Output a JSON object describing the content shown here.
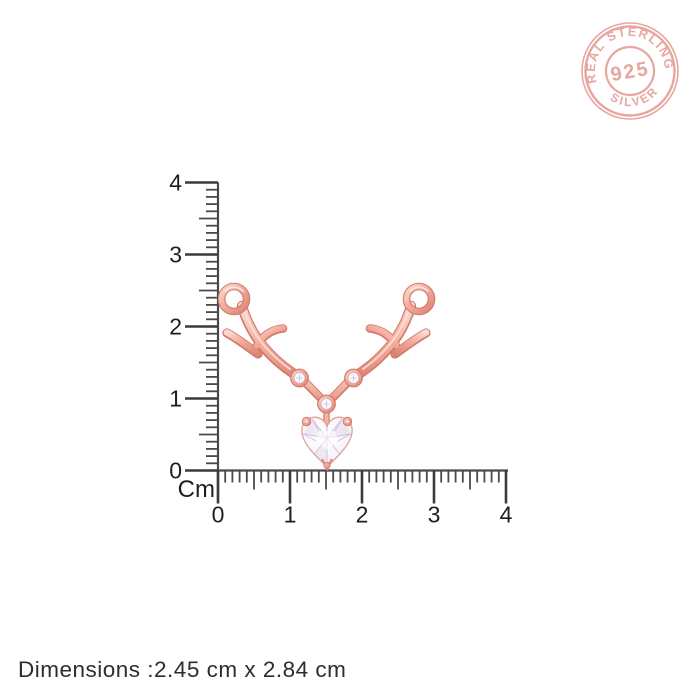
{
  "stamp": {
    "arc_top_text": "REAL STERLING",
    "center_text": "925",
    "arc_bottom_text": "SILVER",
    "color": "#e2948a"
  },
  "ruler": {
    "unit_label": "Cm",
    "vertical_tick_labels": [
      "0",
      "1",
      "2",
      "3",
      "4"
    ],
    "horizontal_tick_labels": [
      "0",
      "1",
      "2",
      "3",
      "4"
    ],
    "line_color": "#4a4a4a",
    "major_tick_color": "#3a3a3a",
    "label_color": "#1e1e1e"
  },
  "pendant": {
    "description": "rose gold deer antler pendant with heart-cut clear stone, three round bezel accent stones and two hanging loops",
    "metal_color": "#f3ab9d",
    "metal_dark_color": "#d3796a",
    "metal_light_color": "#fbd9d0",
    "stone_color": "#f8f4fa",
    "facet_color": "#c3b2d6",
    "accent_stone_count": 3
  },
  "footer": {
    "dimensions_text": "Dimensions :2.45 cm x 2.84 cm"
  }
}
